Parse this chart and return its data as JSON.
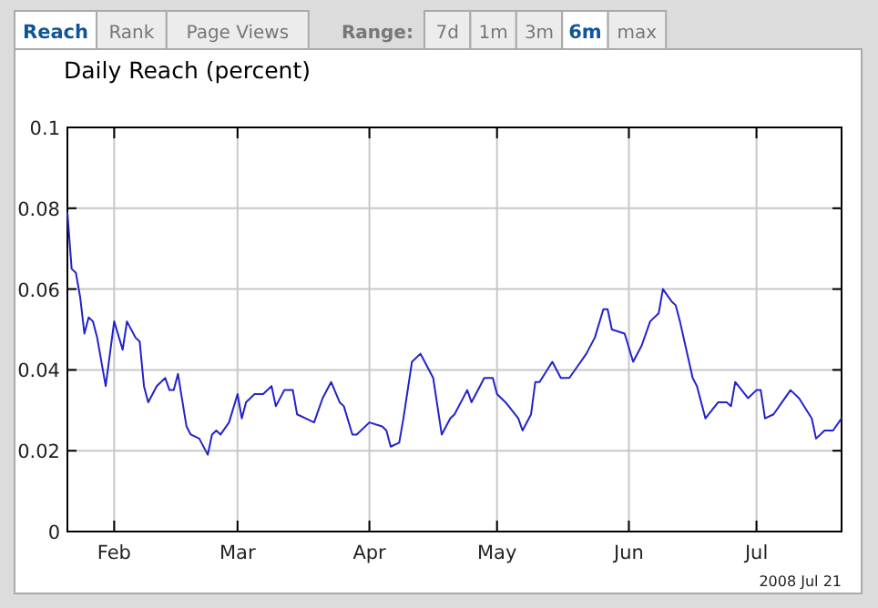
{
  "chart_data": {
    "type": "line",
    "title": "Daily Reach (percent)",
    "annotations": [
      "Reach",
      "Rank",
      "Page Views",
      "Range:",
      "7d",
      "1m",
      "3m",
      "6m",
      "max",
      "2008 Jul 21"
    ],
    "x": [
      "2008-01-21",
      "2008-01-22",
      "2008-01-23",
      "2008-01-24",
      "2008-01-25",
      "2008-01-26",
      "2008-01-27",
      "2008-01-28",
      "2008-01-30",
      "2008-02-01",
      "2008-02-03",
      "2008-02-04",
      "2008-02-06",
      "2008-02-07",
      "2008-02-08",
      "2008-02-09",
      "2008-02-11",
      "2008-02-13",
      "2008-02-14",
      "2008-02-15",
      "2008-02-16",
      "2008-02-18",
      "2008-02-19",
      "2008-02-21",
      "2008-02-23",
      "2008-02-24",
      "2008-02-25",
      "2008-02-26",
      "2008-02-28",
      "2008-03-01",
      "2008-03-02",
      "2008-03-03",
      "2008-03-05",
      "2008-03-07",
      "2008-03-09",
      "2008-03-10",
      "2008-03-12",
      "2008-03-14",
      "2008-03-15",
      "2008-03-17",
      "2008-03-19",
      "2008-03-21",
      "2008-03-23",
      "2008-03-25",
      "2008-03-26",
      "2008-03-28",
      "2008-03-29",
      "2008-04-01",
      "2008-04-04",
      "2008-04-05",
      "2008-04-06",
      "2008-04-08",
      "2008-04-09",
      "2008-04-11",
      "2008-04-13",
      "2008-04-14",
      "2008-04-16",
      "2008-04-18",
      "2008-04-20",
      "2008-04-21",
      "2008-04-22",
      "2008-04-24",
      "2008-04-25",
      "2008-04-27",
      "2008-04-28",
      "2008-04-30",
      "2008-05-01",
      "2008-05-03",
      "2008-05-06",
      "2008-05-07",
      "2008-05-09",
      "2008-05-10",
      "2008-05-11",
      "2008-05-14",
      "2008-05-16",
      "2008-05-18",
      "2008-05-20",
      "2008-05-22",
      "2008-05-24",
      "2008-05-26",
      "2008-05-27",
      "2008-05-28",
      "2008-05-31",
      "2008-06-02",
      "2008-06-04",
      "2008-06-06",
      "2008-06-08",
      "2008-06-09",
      "2008-06-11",
      "2008-06-12",
      "2008-06-13",
      "2008-06-16",
      "2008-06-17",
      "2008-06-19",
      "2008-06-22",
      "2008-06-24",
      "2008-06-25",
      "2008-06-26",
      "2008-06-29",
      "2008-07-01",
      "2008-07-02",
      "2008-07-03",
      "2008-07-05",
      "2008-07-07",
      "2008-07-09",
      "2008-07-11",
      "2008-07-14",
      "2008-07-15",
      "2008-07-17",
      "2008-07-19",
      "2008-07-21"
    ],
    "series": [
      {
        "color": "#2222cc",
        "values": [
          0.079,
          0.065,
          0.064,
          0.058,
          0.049,
          0.053,
          0.052,
          0.048,
          0.036,
          0.052,
          0.045,
          0.052,
          0.048,
          0.047,
          0.036,
          0.032,
          0.036,
          0.038,
          0.035,
          0.035,
          0.039,
          0.026,
          0.024,
          0.023,
          0.019,
          0.024,
          0.025,
          0.024,
          0.027,
          0.034,
          0.028,
          0.032,
          0.034,
          0.034,
          0.036,
          0.031,
          0.035,
          0.035,
          0.029,
          0.028,
          0.027,
          0.033,
          0.037,
          0.032,
          0.031,
          0.024,
          0.024,
          0.027,
          0.026,
          0.025,
          0.021,
          0.022,
          0.028,
          0.042,
          0.044,
          0.042,
          0.038,
          0.024,
          0.028,
          0.029,
          0.031,
          0.035,
          0.032,
          0.036,
          0.038,
          0.038,
          0.034,
          0.032,
          0.028,
          0.025,
          0.029,
          0.037,
          0.037,
          0.042,
          0.038,
          0.038,
          0.041,
          0.044,
          0.048,
          0.055,
          0.055,
          0.05,
          0.049,
          0.042,
          0.046,
          0.052,
          0.054,
          0.06,
          0.057,
          0.056,
          0.052,
          0.038,
          0.036,
          0.028,
          0.032,
          0.032,
          0.031,
          0.037,
          0.033,
          0.035,
          0.035,
          0.028,
          0.029,
          0.032,
          0.035,
          0.033,
          0.028,
          0.023,
          0.025,
          0.025,
          0.028
        ]
      }
    ],
    "xlim": [
      "2008-01-21",
      "2008-07-21"
    ],
    "xticks": [
      {
        "value": "2008-02-01",
        "label": "Feb"
      },
      {
        "value": "2008-03-01",
        "label": "Mar"
      },
      {
        "value": "2008-04-01",
        "label": "Apr"
      },
      {
        "value": "2008-05-01",
        "label": "May"
      },
      {
        "value": "2008-06-01",
        "label": "Jun"
      },
      {
        "value": "2008-07-01",
        "label": "Jul"
      }
    ],
    "ylim": [
      0,
      0.1
    ],
    "yticks": [
      0,
      0.02,
      0.04,
      0.06,
      0.08,
      0.1
    ],
    "grid": true,
    "line_style": "solid"
  }
}
